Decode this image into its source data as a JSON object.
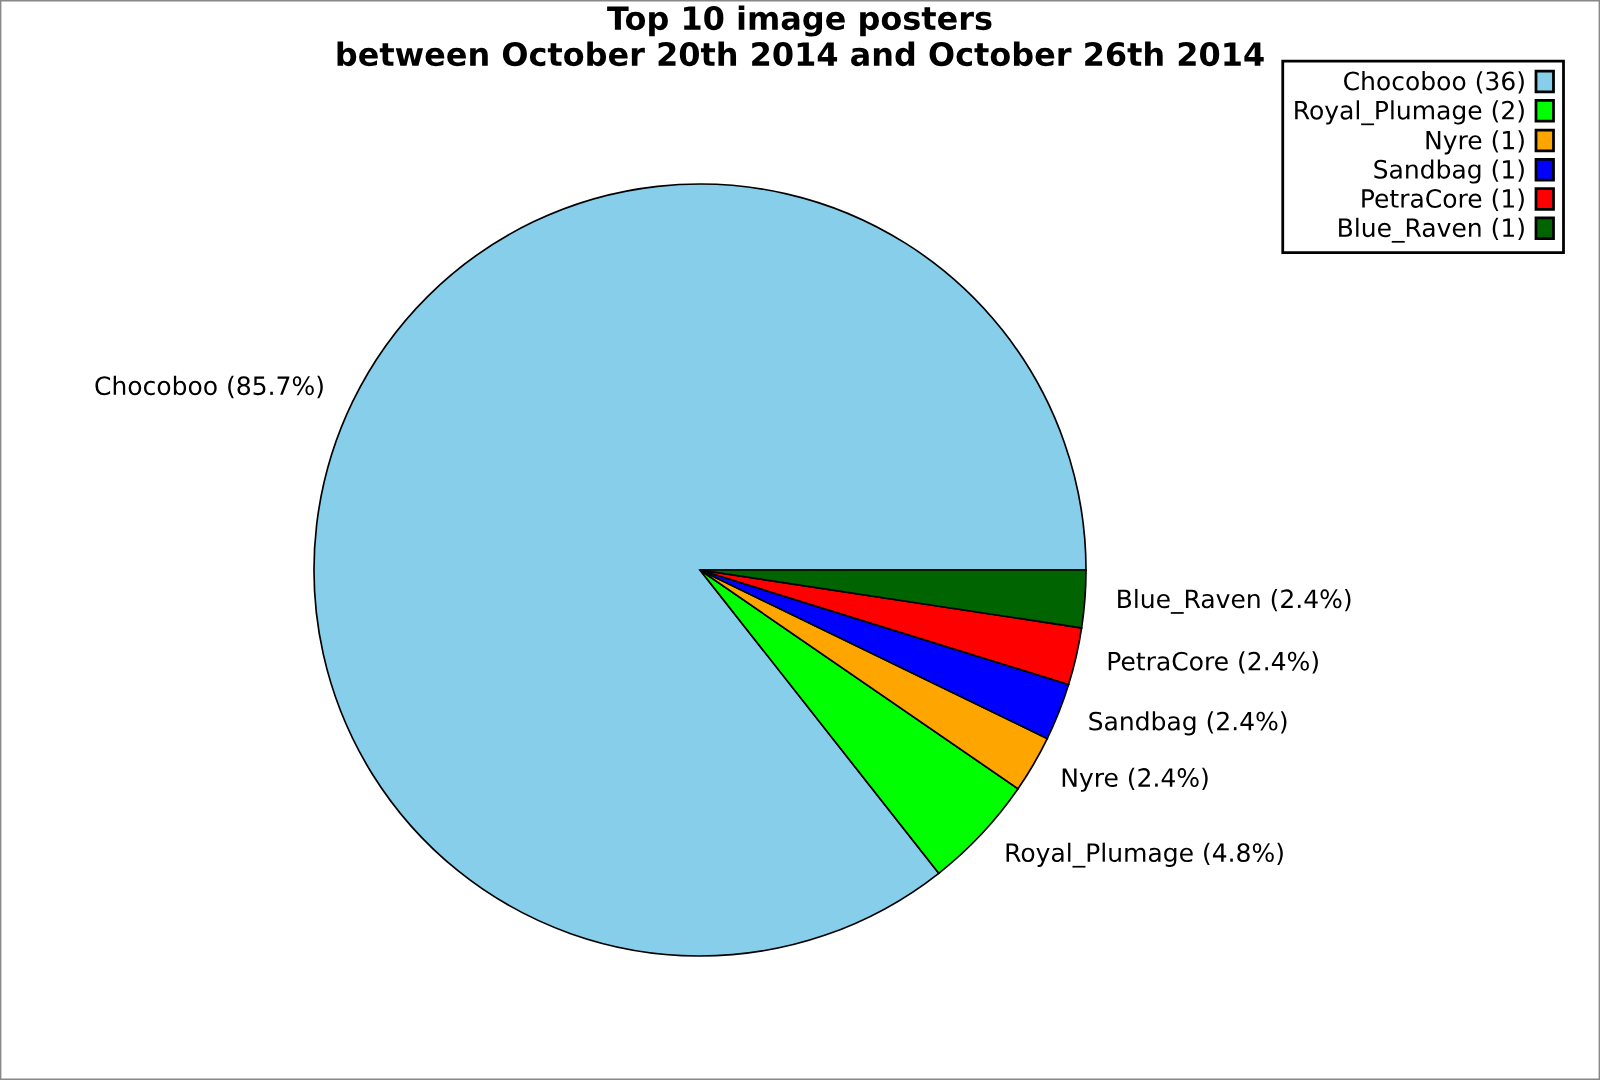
{
  "chart_data": {
    "type": "pie",
    "title": "Top 10 image posters\nbetween October 20th 2014 and October 26th 2014",
    "categories": [
      "Chocoboo (36)",
      "Royal_Plumage (2)",
      "Nyre (1)",
      "Sandbag (1)",
      "PetraCore (1)",
      "Blue_Raven (1)"
    ],
    "values": [
      85.7,
      4.8,
      2.4,
      2.4,
      2.4,
      2.4
    ],
    "value_labels": [
      "Chocoboo (85.7%)",
      "Royal_Plumage (4.8%)",
      "Nyre (2.4%)",
      "Sandbag (2.4%)",
      "PetraCore (2.4%)",
      "Blue_Raven (2.4%)"
    ],
    "colors": [
      "#87ceeb",
      "#00ff00",
      "#ffa500",
      "#0000ff",
      "#ff0000",
      "#006400"
    ],
    "legend": "top right"
  }
}
